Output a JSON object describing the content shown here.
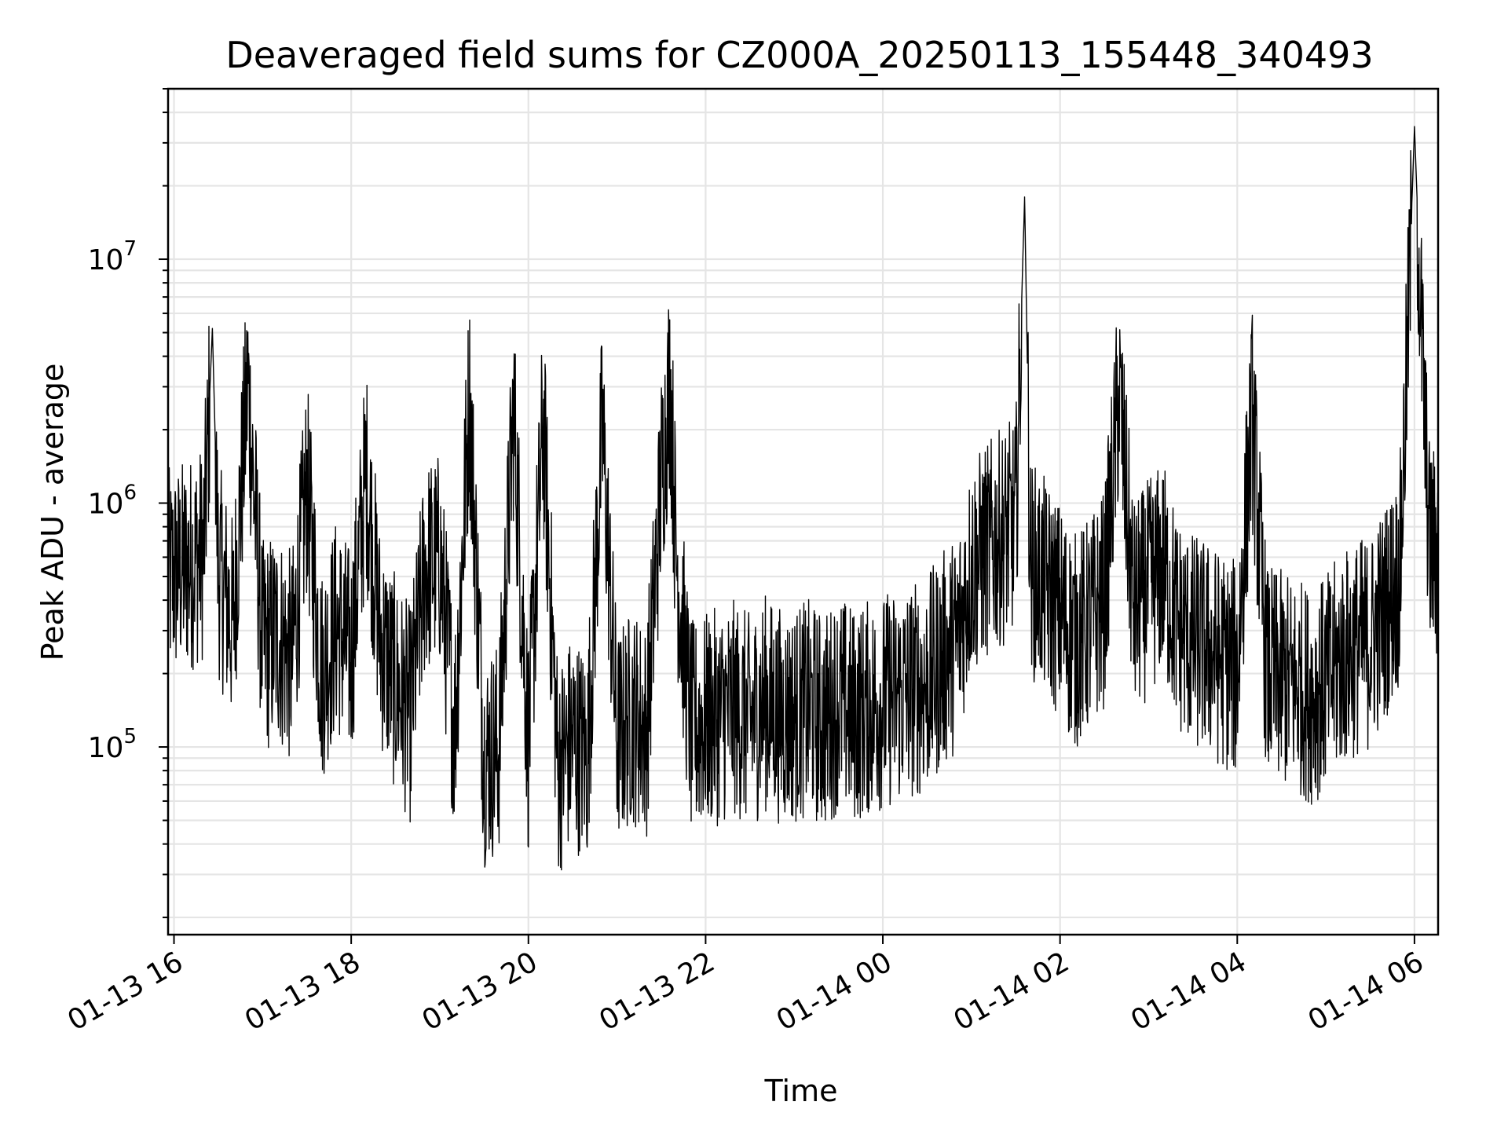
{
  "chart_data": {
    "type": "line",
    "title": "Deaveraged field sums for CZ000A_20250113_155448_340493",
    "xlabel": "Time",
    "ylabel": "Peak ADU - average",
    "yscale": "log",
    "ylim": [
      17000,
      50000000
    ],
    "xlim": [
      "2025-01-13 15:56",
      "2025-01-14 06:16"
    ],
    "grid": true,
    "line_color": "#000000",
    "grid_color": "#e5e5e5",
    "x_ticks": [
      {
        "value": "2025-01-13 16:00",
        "label": "01-13 16"
      },
      {
        "value": "2025-01-13 18:00",
        "label": "01-13 18"
      },
      {
        "value": "2025-01-13 20:00",
        "label": "01-13 20"
      },
      {
        "value": "2025-01-13 22:00",
        "label": "01-13 22"
      },
      {
        "value": "2025-01-14 00:00",
        "label": "01-14 00"
      },
      {
        "value": "2025-01-14 02:00",
        "label": "01-14 02"
      },
      {
        "value": "2025-01-14 04:00",
        "label": "01-14 04"
      },
      {
        "value": "2025-01-14 06:00",
        "label": "01-14 06"
      }
    ],
    "y_ticks": [
      {
        "value": 100000,
        "base": "10",
        "exp": "5"
      },
      {
        "value": 1000000,
        "base": "10",
        "exp": "6"
      },
      {
        "value": 10000000,
        "base": "10",
        "exp": "7"
      }
    ],
    "series": [
      {
        "x": [
          "2025-01-13 15:56",
          "2025-01-13 16:10",
          "2025-01-13 16:20",
          "2025-01-13 16:26",
          "2025-01-13 16:30",
          "2025-01-13 16:40",
          "2025-01-13 16:50",
          "2025-01-13 17:00",
          "2025-01-13 17:10",
          "2025-01-13 17:20",
          "2025-01-13 17:30",
          "2025-01-13 17:40",
          "2025-01-13 17:50",
          "2025-01-13 18:00",
          "2025-01-13 18:10",
          "2025-01-13 18:20",
          "2025-01-13 18:30",
          "2025-01-13 18:40",
          "2025-01-13 18:50",
          "2025-01-13 19:00",
          "2025-01-13 19:10",
          "2025-01-13 19:20",
          "2025-01-13 19:30",
          "2025-01-13 19:40",
          "2025-01-13 19:50",
          "2025-01-13 20:00",
          "2025-01-13 20:10",
          "2025-01-13 20:20",
          "2025-01-13 20:30",
          "2025-01-13 20:40",
          "2025-01-13 20:50",
          "2025-01-13 21:00",
          "2025-01-13 21:10",
          "2025-01-13 21:20",
          "2025-01-13 21:30",
          "2025-01-13 21:36",
          "2025-01-13 21:40",
          "2025-01-13 21:50",
          "2025-01-13 22:00",
          "2025-01-13 22:10",
          "2025-01-13 22:20",
          "2025-01-13 22:30",
          "2025-01-13 22:40",
          "2025-01-13 22:50",
          "2025-01-13 23:00",
          "2025-01-13 23:10",
          "2025-01-13 23:20",
          "2025-01-13 23:30",
          "2025-01-13 23:40",
          "2025-01-13 23:50",
          "2025-01-14 00:00",
          "2025-01-14 00:10",
          "2025-01-14 00:20",
          "2025-01-14 00:30",
          "2025-01-14 00:40",
          "2025-01-14 00:50",
          "2025-01-14 01:00",
          "2025-01-14 01:10",
          "2025-01-14 01:20",
          "2025-01-14 01:30",
          "2025-01-14 01:36",
          "2025-01-14 01:40",
          "2025-01-14 01:50",
          "2025-01-14 02:00",
          "2025-01-14 02:10",
          "2025-01-14 02:20",
          "2025-01-14 02:30",
          "2025-01-14 02:40",
          "2025-01-14 02:50",
          "2025-01-14 03:00",
          "2025-01-14 03:10",
          "2025-01-14 03:20",
          "2025-01-14 03:30",
          "2025-01-14 03:40",
          "2025-01-14 03:50",
          "2025-01-14 04:00",
          "2025-01-14 04:10",
          "2025-01-14 04:20",
          "2025-01-14 04:30",
          "2025-01-14 04:40",
          "2025-01-14 04:50",
          "2025-01-14 05:00",
          "2025-01-14 05:10",
          "2025-01-14 05:20",
          "2025-01-14 05:30",
          "2025-01-14 05:40",
          "2025-01-14 05:50",
          "2025-01-14 06:00",
          "2025-01-14 06:10",
          "2025-01-14 06:16"
        ],
        "values": [
          550000,
          620000,
          700000,
          5200000,
          600000,
          350000,
          3500000,
          280000,
          320000,
          250000,
          1300000,
          220000,
          350000,
          260000,
          1500000,
          300000,
          200000,
          150000,
          600000,
          650000,
          130000,
          3100000,
          100000,
          110000,
          2700000,
          110000,
          2400000,
          90000,
          120000,
          100000,
          2300000,
          120000,
          150000,
          130000,
          1400000,
          3600000,
          700000,
          130000,
          140000,
          150000,
          160000,
          140000,
          170000,
          150000,
          150000,
          160000,
          140000,
          170000,
          150000,
          160000,
          170000,
          180000,
          190000,
          200000,
          250000,
          300000,
          600000,
          700000,
          800000,
          900000,
          18000000,
          600000,
          500000,
          400000,
          300000,
          350000,
          450000,
          3200000,
          400000,
          500000,
          600000,
          350000,
          300000,
          280000,
          250000,
          230000,
          2600000,
          220000,
          210000,
          200000,
          180000,
          200000,
          250000,
          280000,
          300000,
          400000,
          550000,
          35000000,
          750000,
          650000
        ]
      }
    ]
  }
}
